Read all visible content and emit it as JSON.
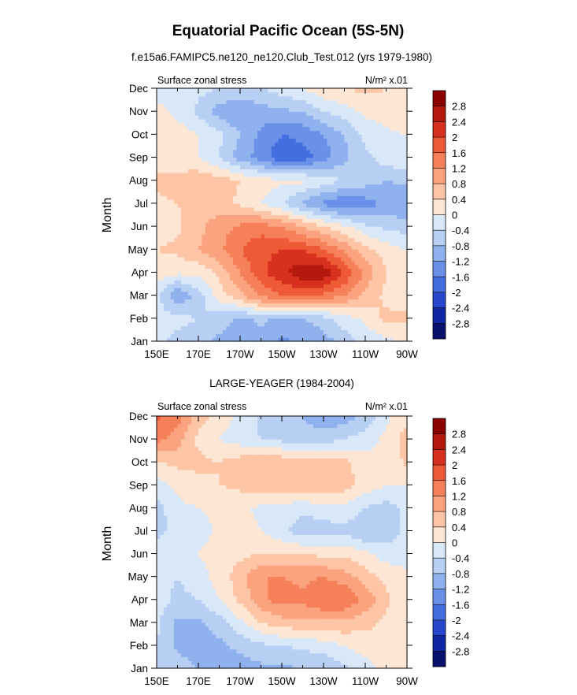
{
  "title": "Equatorial Pacific Ocean (5S-5N)",
  "colorbar": {
    "levels": [
      "2.8",
      "2.4",
      "2",
      "1.6",
      "1.2",
      "0.8",
      "0.4",
      "0",
      "-0.4",
      "-0.8",
      "-1.2",
      "-1.6",
      "-2",
      "-2.4",
      "-2.8"
    ],
    "colors": [
      "#8b0000",
      "#b3190d",
      "#d7301f",
      "#ee5a36",
      "#f6805a",
      "#fba27f",
      "#fdc5a5",
      "#fde6d3",
      "#d8e8f8",
      "#b7cff3",
      "#8fb1ee",
      "#6a90e8",
      "#436ee0",
      "#2748cc",
      "#1027a3",
      "#08106e"
    ]
  },
  "chart_data": [
    {
      "type": "heatmap",
      "subtitle": "f.e15a6.FAMIPC5.ne120_ne120.Club_Test.012 (yrs 1979-1980)",
      "left_label": "Surface zonal stress",
      "right_label": "N/m² x.01",
      "ylabel": "Month",
      "x_ticks": [
        "150E",
        "170E",
        "170W",
        "150W",
        "130W",
        "110W",
        "90W"
      ],
      "y_ticks": [
        "Jan",
        "Feb",
        "Mar",
        "Apr",
        "May",
        "Jun",
        "Jul",
        "Aug",
        "Sep",
        "Oct",
        "Nov",
        "Dec"
      ],
      "xlim": [
        150,
        270
      ],
      "ylim": [
        1,
        12
      ],
      "longitudes": [
        150,
        160,
        170,
        180,
        190,
        200,
        210,
        220,
        230,
        240,
        250,
        260,
        270
      ],
      "values": [
        [
          -0.3,
          -0.5,
          -0.6,
          -0.9,
          -1.1,
          -1.0,
          -1.3,
          -1.1,
          -1.0,
          -0.6,
          -0.3,
          -0.1,
          0.1
        ],
        [
          -0.2,
          -0.3,
          -0.4,
          -0.6,
          -0.9,
          -0.7,
          -0.9,
          -0.8,
          -0.6,
          -0.2,
          0.1,
          0.5,
          0.5
        ],
        [
          -0.3,
          -1.2,
          -0.6,
          0.2,
          0.7,
          1.3,
          1.6,
          1.7,
          1.5,
          1.2,
          0.7,
          0.3,
          0.1
        ],
        [
          0.2,
          0.1,
          0.1,
          0.5,
          1.2,
          1.9,
          2.3,
          2.7,
          2.7,
          2.0,
          1.1,
          0.4,
          0.1
        ],
        [
          0.4,
          0.5,
          0.8,
          1.1,
          1.6,
          1.9,
          2.0,
          2.0,
          1.6,
          1.1,
          0.5,
          0.2,
          0.0
        ],
        [
          0.2,
          0.3,
          0.7,
          1.0,
          1.3,
          1.4,
          1.2,
          0.8,
          0.4,
          0.1,
          -0.3,
          -0.5,
          -0.6
        ],
        [
          0.3,
          0.4,
          0.6,
          0.6,
          0.3,
          0.0,
          -0.4,
          -0.9,
          -1.3,
          -1.6,
          -1.4,
          -1.1,
          -1.2
        ],
        [
          0.5,
          0.6,
          0.7,
          0.6,
          0.4,
          0.2,
          0.1,
          0.1,
          -0.2,
          -0.4,
          -0.6,
          -0.8,
          -0.7
        ],
        [
          0.1,
          0.1,
          0.0,
          -0.4,
          -1.0,
          -1.4,
          -1.9,
          -1.8,
          -1.4,
          -0.9,
          -0.5,
          -0.2,
          0.0
        ],
        [
          0.3,
          0.2,
          0.0,
          -0.3,
          -0.8,
          -1.3,
          -1.6,
          -1.5,
          -1.2,
          -0.8,
          -0.3,
          -0.1,
          0.0
        ],
        [
          0.1,
          -0.1,
          -0.5,
          -1.0,
          -1.2,
          -1.0,
          -0.9,
          -0.8,
          -0.4,
          -0.2,
          0.1,
          0.2,
          0.3
        ],
        [
          -0.1,
          -0.3,
          -0.3,
          -0.4,
          -0.5,
          -0.4,
          -0.2,
          0.0,
          0.3,
          0.4,
          0.5,
          0.4,
          0.4
        ]
      ]
    },
    {
      "type": "heatmap",
      "subtitle": "LARGE-YEAGER (1984-2004)",
      "left_label": "Surface zonal stress",
      "right_label": "N/m² x.01",
      "ylabel": "Month",
      "x_ticks": [
        "150E",
        "170E",
        "170W",
        "150W",
        "130W",
        "110W",
        "90W"
      ],
      "y_ticks": [
        "Jan",
        "Feb",
        "Mar",
        "Apr",
        "May",
        "Jun",
        "Jul",
        "Aug",
        "Sep",
        "Oct",
        "Nov",
        "Dec"
      ],
      "xlim": [
        150,
        270
      ],
      "ylim": [
        1,
        12
      ],
      "longitudes": [
        150,
        160,
        170,
        180,
        190,
        200,
        210,
        220,
        230,
        240,
        250,
        260,
        270
      ],
      "values": [
        [
          -0.4,
          -0.6,
          -0.8,
          -0.9,
          -1.0,
          -0.9,
          -0.9,
          -0.8,
          -0.8,
          -0.5,
          -0.2,
          0.1,
          0.2
        ],
        [
          -0.4,
          -0.9,
          -1.0,
          -0.9,
          -0.7,
          -0.5,
          -0.4,
          -0.3,
          -0.2,
          0.0,
          0.2,
          0.4,
          0.3
        ],
        [
          -0.3,
          -0.9,
          -0.9,
          -0.6,
          -0.1,
          0.4,
          0.6,
          0.7,
          0.7,
          0.7,
          0.5,
          0.3,
          0.1
        ],
        [
          -0.2,
          -0.5,
          -0.4,
          0.0,
          0.5,
          1.1,
          1.4,
          1.3,
          1.6,
          1.6,
          1.1,
          0.5,
          0.1
        ],
        [
          -0.3,
          -0.4,
          -0.2,
          0.2,
          0.6,
          1.2,
          1.2,
          1.1,
          1.2,
          1.0,
          0.6,
          0.3,
          0.1
        ],
        [
          -0.2,
          -0.1,
          0.0,
          0.2,
          0.3,
          0.4,
          0.4,
          0.4,
          0.3,
          0.3,
          0.1,
          -0.2,
          -0.2
        ],
        [
          -0.5,
          -0.3,
          -0.2,
          0.1,
          0.2,
          0.0,
          -0.3,
          -0.6,
          -0.6,
          -0.5,
          -0.8,
          -0.7,
          -0.3
        ],
        [
          -0.6,
          -0.1,
          0.0,
          0.1,
          0.1,
          -0.1,
          -0.2,
          -0.3,
          -0.2,
          -0.1,
          -0.4,
          -0.6,
          -0.3
        ],
        [
          -0.2,
          0.1,
          0.3,
          0.4,
          0.5,
          0.7,
          0.7,
          0.8,
          0.8,
          0.6,
          0.2,
          0.0,
          0.0
        ],
        [
          0.4,
          0.5,
          0.5,
          0.4,
          0.6,
          0.8,
          0.7,
          0.7,
          0.7,
          0.5,
          0.2,
          0.0,
          0.5
        ],
        [
          1.3,
          1.0,
          0.3,
          0.0,
          -0.2,
          -0.4,
          -0.5,
          -0.6,
          -0.6,
          -0.4,
          -0.2,
          0.1,
          0.6
        ],
        [
          1.7,
          1.4,
          0.6,
          0.2,
          -0.1,
          -0.5,
          -0.7,
          -0.8,
          -1.1,
          -1.0,
          -0.7,
          -0.1,
          0.3
        ]
      ]
    }
  ]
}
